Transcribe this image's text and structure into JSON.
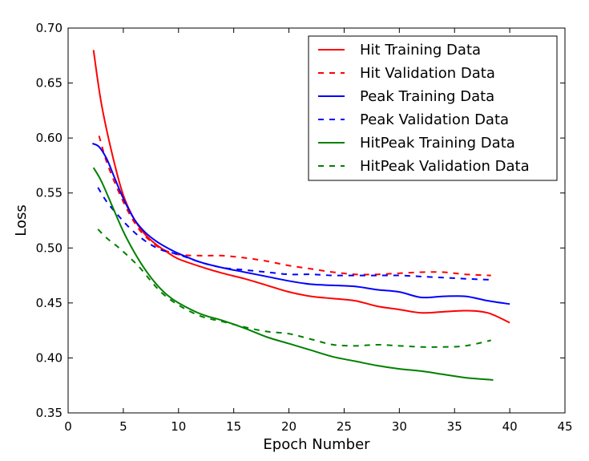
{
  "chart_data": {
    "type": "line",
    "title": "",
    "xlabel": "Epoch Number",
    "ylabel": "Loss",
    "xlim": [
      0,
      45
    ],
    "ylim": [
      0.35,
      0.7
    ],
    "xticks": [
      0,
      5,
      10,
      15,
      20,
      25,
      30,
      35,
      40,
      45
    ],
    "yticks": [
      0.35,
      0.4,
      0.45,
      0.5,
      0.55,
      0.6,
      0.65,
      0.7
    ],
    "xtick_labels": [
      "0",
      "5",
      "10",
      "15",
      "20",
      "25",
      "30",
      "35",
      "40",
      "45"
    ],
    "ytick_labels": [
      "0.35",
      "0.40",
      "0.45",
      "0.50",
      "0.55",
      "0.60",
      "0.65",
      "0.70"
    ],
    "grid": false,
    "legend_position": "top-right",
    "series": [
      {
        "name": "Hit Training Data",
        "color": "#ff0000",
        "style": "solid",
        "x": [
          2.3,
          3,
          4,
          5,
          6,
          7,
          8,
          9,
          10,
          12,
          14,
          16,
          18,
          20,
          22,
          24,
          26,
          28,
          30,
          32,
          34,
          36,
          38,
          40
        ],
        "y": [
          0.68,
          0.632,
          0.585,
          0.548,
          0.526,
          0.512,
          0.503,
          0.496,
          0.49,
          0.483,
          0.477,
          0.472,
          0.466,
          0.46,
          0.456,
          0.454,
          0.452,
          0.447,
          0.444,
          0.441,
          0.442,
          0.443,
          0.441,
          0.432
        ]
      },
      {
        "name": "Hit Validation Data",
        "color": "#ff0000",
        "style": "dashed",
        "x": [
          2.8,
          3.5,
          4.5,
          5.5,
          6.5,
          7.5,
          8.5,
          10,
          12,
          14,
          16,
          18,
          20,
          22,
          24,
          26,
          28,
          30,
          32,
          34,
          36,
          38.3
        ],
        "y": [
          0.602,
          0.578,
          0.553,
          0.532,
          0.516,
          0.506,
          0.499,
          0.494,
          0.493,
          0.493,
          0.491,
          0.488,
          0.484,
          0.481,
          0.478,
          0.476,
          0.476,
          0.477,
          0.478,
          0.478,
          0.476,
          0.475
        ]
      },
      {
        "name": "Peak Training Data",
        "color": "#0000ff",
        "style": "solid",
        "x": [
          2.2,
          2.8,
          3.5,
          4.2,
          5,
          6,
          7,
          8,
          9,
          10,
          12,
          14,
          16,
          18,
          20,
          22,
          24,
          26,
          28,
          30,
          32,
          34,
          36,
          38,
          40
        ],
        "y": [
          0.595,
          0.592,
          0.581,
          0.564,
          0.545,
          0.526,
          0.514,
          0.506,
          0.5,
          0.495,
          0.487,
          0.482,
          0.478,
          0.474,
          0.47,
          0.467,
          0.466,
          0.465,
          0.462,
          0.46,
          0.455,
          0.456,
          0.456,
          0.452,
          0.449
        ]
      },
      {
        "name": "Peak Validation Data",
        "color": "#0000ff",
        "style": "dashed",
        "x": [
          2.7,
          3.5,
          4.5,
          5.5,
          6.5,
          7.5,
          8.5,
          10,
          12,
          14,
          16,
          18,
          20,
          22,
          24,
          26,
          28,
          30,
          32,
          34,
          36,
          38.3
        ],
        "y": [
          0.555,
          0.542,
          0.53,
          0.519,
          0.51,
          0.503,
          0.498,
          0.494,
          0.487,
          0.482,
          0.48,
          0.478,
          0.476,
          0.476,
          0.475,
          0.475,
          0.475,
          0.475,
          0.474,
          0.473,
          0.472,
          0.471
        ]
      },
      {
        "name": "HitPeak Training Data",
        "color": "#008000",
        "style": "solid",
        "x": [
          2.3,
          3,
          4,
          5,
          6,
          7,
          8,
          9,
          10,
          12,
          14,
          16,
          18,
          20,
          22,
          24,
          26,
          28,
          30,
          32,
          34,
          36,
          38.5
        ],
        "y": [
          0.573,
          0.561,
          0.538,
          0.515,
          0.496,
          0.48,
          0.467,
          0.457,
          0.45,
          0.44,
          0.434,
          0.427,
          0.419,
          0.413,
          0.407,
          0.401,
          0.397,
          0.393,
          0.39,
          0.388,
          0.385,
          0.382,
          0.38
        ]
      },
      {
        "name": "HitPeak Validation Data",
        "color": "#008000",
        "style": "dashed",
        "x": [
          2.7,
          3.5,
          4.5,
          5.5,
          6.5,
          7.5,
          8.5,
          10,
          12,
          14,
          16,
          18,
          20,
          22,
          24,
          26,
          28,
          30,
          32,
          34,
          36,
          38.3
        ],
        "y": [
          0.517,
          0.509,
          0.501,
          0.492,
          0.482,
          0.47,
          0.459,
          0.448,
          0.438,
          0.433,
          0.428,
          0.424,
          0.422,
          0.417,
          0.412,
          0.411,
          0.412,
          0.411,
          0.41,
          0.41,
          0.411,
          0.416
        ]
      }
    ]
  }
}
